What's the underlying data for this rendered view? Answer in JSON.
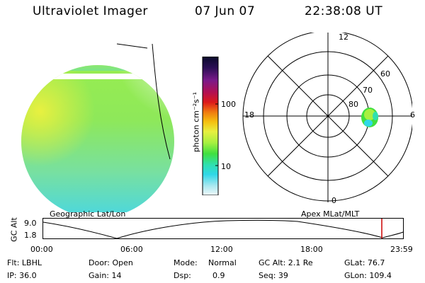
{
  "header": {
    "instrument": "Ultraviolet Imager",
    "date": "07 Jun 07",
    "time": "22:38:08 UT"
  },
  "colorbar": {
    "unit_label": "photon cm⁻²s⁻¹",
    "ticks": [
      "100",
      "10"
    ],
    "colors": [
      "#0a0a2a",
      "#2a0f55",
      "#7a1a8a",
      "#b41050",
      "#dc1a1a",
      "#f07a10",
      "#f5c010",
      "#e8f040",
      "#a8f040",
      "#40e040",
      "#30e0b0",
      "#30d8e8",
      "#a8e8f0",
      "#f0f8fa"
    ]
  },
  "polar": {
    "mlt_labels": [
      "12",
      "18",
      "6",
      "0"
    ],
    "lat_labels": [
      "60",
      "70",
      "80"
    ]
  },
  "panel_titles": {
    "geo": "Geographic Lat/Lon",
    "apex": "Apex MLat/MLT"
  },
  "altitude_plot": {
    "axis_label": "GC Alt",
    "y_ticks": [
      "9.0",
      "1.8"
    ],
    "x_ticks": [
      "00:00",
      "06:00",
      "12:00",
      "18:00",
      "23:59"
    ],
    "marker_color": "#cc0000"
  },
  "info": {
    "flt": "Flt: LBHL",
    "ip": "IP: 36.0",
    "door": "Door: Open",
    "gain": "Gain: 14",
    "mode_label": "Mode:",
    "mode_value": "Normal",
    "dsp_label": "Dsp:",
    "dsp_value": "0.9",
    "gcalt": "GC Alt: 2.1 Re",
    "seq": "Seq: 39",
    "glat": "GLat: 76.7",
    "glon": "GLon: 109.4"
  }
}
